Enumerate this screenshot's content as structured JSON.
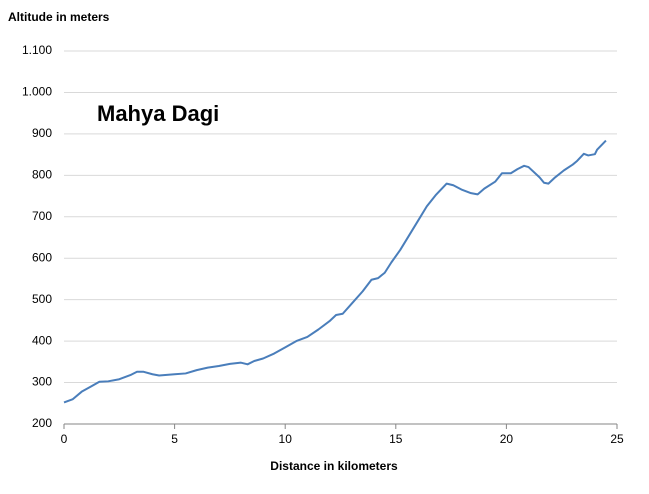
{
  "chart_data": {
    "type": "line",
    "annotation": "Mahya Dagi",
    "annotation_color": "#9b1b30",
    "y_label": "Altitude in meters",
    "x_label": "Distance in kilometers",
    "x": [
      0,
      0.4,
      0.8,
      1.2,
      1.6,
      2.0,
      2.5,
      3.0,
      3.3,
      3.6,
      4.0,
      4.3,
      5.0,
      5.5,
      6.0,
      6.5,
      7.0,
      7.5,
      8.0,
      8.3,
      8.6,
      9.0,
      9.5,
      10.0,
      10.5,
      11.0,
      11.5,
      12.0,
      12.3,
      12.6,
      13.0,
      13.5,
      13.9,
      14.2,
      14.5,
      14.8,
      15.2,
      15.6,
      16.0,
      16.4,
      16.8,
      17.3,
      17.6,
      18.0,
      18.4,
      18.7,
      19.0,
      19.5,
      19.8,
      20.2,
      20.5,
      20.8,
      21.0,
      21.5,
      21.7,
      21.9,
      22.2,
      22.6,
      23.0,
      23.2,
      23.5,
      23.7,
      24.0,
      24.1,
      24.5
    ],
    "series": [
      {
        "name": "Altitude",
        "color": "#4a7ebb",
        "values": [
          252,
          260,
          278,
          290,
          302,
          303,
          308,
          318,
          326,
          326,
          320,
          317,
          320,
          322,
          330,
          336,
          340,
          345,
          348,
          344,
          352,
          358,
          370,
          385,
          400,
          410,
          428,
          448,
          463,
          466,
          490,
          520,
          548,
          552,
          565,
          590,
          620,
          655,
          690,
          725,
          752,
          780,
          776,
          765,
          757,
          754,
          768,
          785,
          805,
          805,
          815,
          823,
          820,
          795,
          782,
          780,
          795,
          812,
          826,
          835,
          852,
          848,
          851,
          862,
          884
        ]
      }
    ],
    "xlim": [
      0,
      25
    ],
    "xticks": [
      0,
      5,
      10,
      15,
      20,
      25
    ],
    "ylim": [
      200,
      1100
    ],
    "yticks": [
      200,
      300,
      400,
      500,
      600,
      700,
      800,
      900,
      {
        "value": 1000,
        "label": "1.000"
      },
      {
        "value": 1100,
        "label": "1.100"
      }
    ],
    "grid": true
  }
}
